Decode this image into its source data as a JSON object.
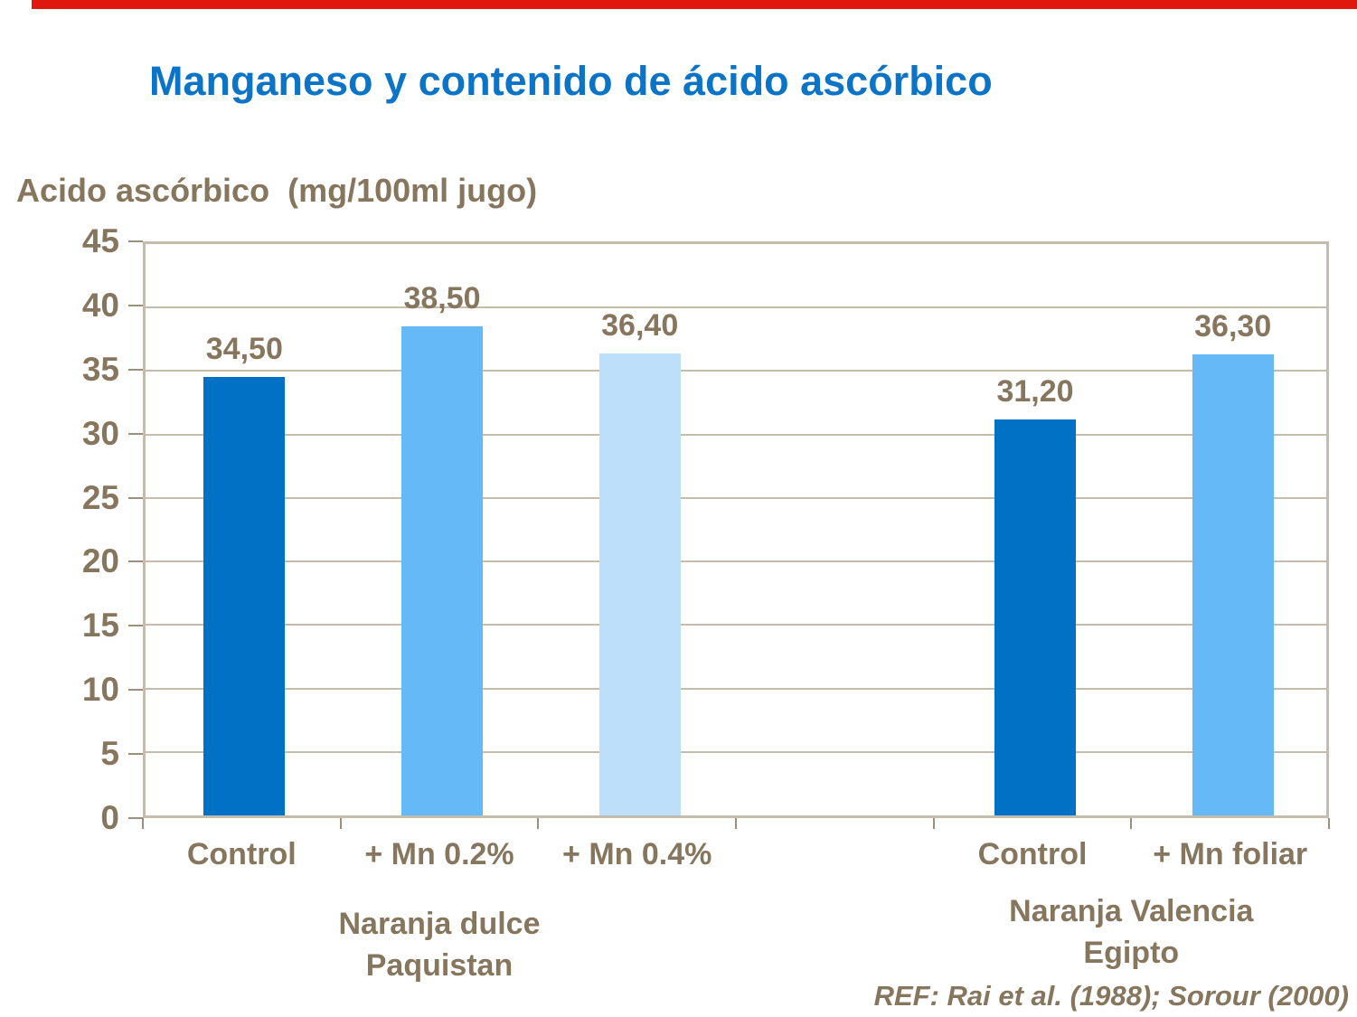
{
  "page": {
    "background": "#FFFFFF",
    "accent_bar_color": "#E0170D"
  },
  "title": {
    "text": "Manganeso y contenido de ácido ascórbico",
    "color": "#0B74C6"
  },
  "axis_title": "Acido ascórbico  (mg/100ml jugo)",
  "footer": {
    "ref": "REF: Rai et al. (1988); Sorour (2000)"
  },
  "chart_data": {
    "type": "bar",
    "title": "Manganeso y contenido de ácido ascórbico",
    "xlabel": "",
    "ylabel": "Acido ascórbico (mg/100ml jugo)",
    "ylim": [
      0,
      45
    ],
    "ytick_step": 5,
    "yticks": [
      0,
      5,
      10,
      15,
      20,
      25,
      30,
      35,
      40,
      45
    ],
    "grid": true,
    "legend": "none",
    "categories": [
      "Control",
      "+ Mn 0.2%",
      "+ Mn 0.4%",
      "",
      "Control",
      "+ Mn foliar"
    ],
    "values": [
      34.5,
      38.5,
      36.4,
      null,
      31.2,
      36.3
    ],
    "value_labels": [
      "34,50",
      "38,50",
      "36,40",
      "",
      "31,20",
      "36,30"
    ],
    "bar_colors": [
      "#0071C5",
      "#66B9F7",
      "#BDDFFA",
      null,
      "#0071C5",
      "#66B9F7"
    ],
    "groups": [
      {
        "label_line1": "Naranja dulce",
        "label_line2": "Paquistan",
        "center_slot": 1.0
      },
      {
        "label_line1": "Naranja Valencia",
        "label_line2": "Egipto",
        "center_slot": 4.5
      }
    ],
    "text_color": "#86765E",
    "axis_color": "#C6BCAC",
    "tick_color": "#9A907E"
  }
}
